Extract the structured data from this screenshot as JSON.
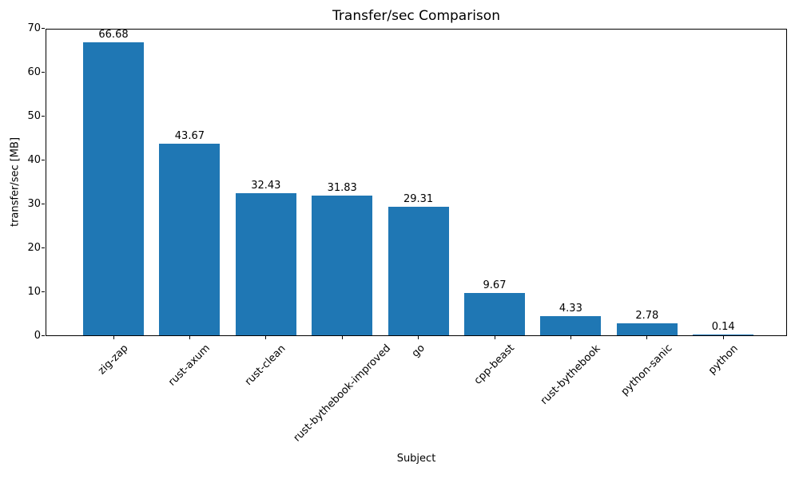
{
  "chart_data": {
    "type": "bar",
    "title": "Transfer/sec Comparison",
    "xlabel": "Subject",
    "ylabel": "transfer/sec [MB]",
    "categories": [
      "zig-zap",
      "rust-axum",
      "rust-clean",
      "rust-bythebook-improved",
      "go",
      "cpp-beast",
      "rust-bythebook",
      "python-sanic",
      "python"
    ],
    "values": [
      66.68,
      43.67,
      32.43,
      31.83,
      29.31,
      9.67,
      4.33,
      2.78,
      0.14
    ],
    "value_labels": [
      "66.68",
      "43.67",
      "32.43",
      "31.83",
      "29.31",
      "9.67",
      "4.33",
      "2.78",
      "0.14"
    ],
    "ylim": [
      0,
      70
    ],
    "yticks": [
      0,
      10,
      20,
      30,
      40,
      50,
      60,
      70
    ],
    "bar_color": "#1f77b4",
    "text_color": "#000000",
    "x_tick_rotation_deg": 45,
    "grid": "off",
    "legend": "none"
  }
}
